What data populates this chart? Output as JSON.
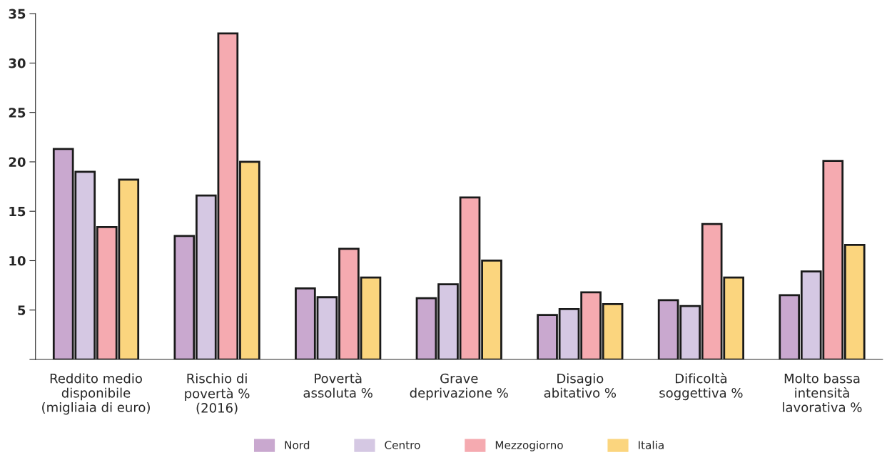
{
  "chart_data": {
    "type": "bar",
    "categories": [
      "Reddito medio\ndisponibile\n(migliaia di euro)",
      "Rischio di\npovertà %\n(2016)",
      "Povertà\nassoluta %",
      "Grave\ndeprivazione %",
      "Disagio\nabitativo %",
      "Dificoltà\nsoggettiva %",
      "Molto bassa\nintensità\nlavorativa %"
    ],
    "series": [
      {
        "name": "Nord",
        "color": "#c9a8cf",
        "values": [
          21.3,
          12.5,
          7.2,
          6.2,
          4.5,
          6.0,
          6.5
        ]
      },
      {
        "name": "Centro",
        "color": "#d5c8e3",
        "values": [
          19.0,
          16.6,
          6.3,
          7.6,
          5.1,
          5.4,
          8.9
        ]
      },
      {
        "name": "Mezzogiorno",
        "color": "#f5aab0",
        "values": [
          13.4,
          33.0,
          11.2,
          16.4,
          6.8,
          13.7,
          20.1
        ]
      },
      {
        "name": "Italia",
        "color": "#fbd57e",
        "values": [
          18.2,
          20.0,
          8.3,
          10.0,
          5.6,
          8.3,
          11.6
        ]
      }
    ],
    "ylim": [
      0,
      35
    ],
    "yticks": [
      {
        "value": 0,
        "label": null
      },
      5,
      10,
      15,
      20,
      25,
      30,
      35
    ],
    "grid": false,
    "legend": "bottom"
  }
}
